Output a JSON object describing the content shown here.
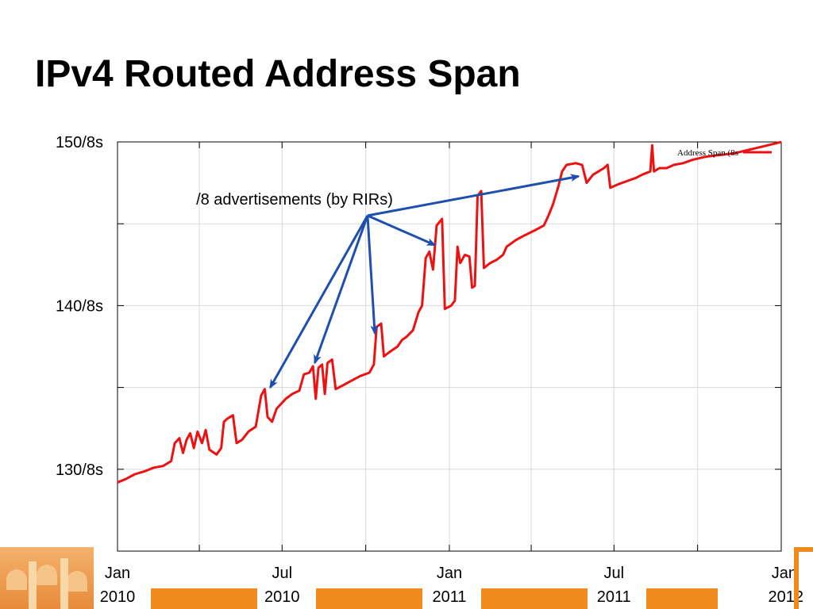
{
  "slide": {
    "title": "IPv4 Routed Address Span"
  },
  "colors": {
    "series_line": "#ee1111",
    "arrow": "#1f4fae",
    "grid": "#d8d8d8",
    "footer_accent": "#f08a1c"
  },
  "chart_data": {
    "type": "line",
    "title": "",
    "xlabel": "",
    "ylabel": "",
    "xlim": [
      "2010-01-01",
      "2012-01-01"
    ],
    "ylim": [
      125,
      150
    ],
    "grid": true,
    "legend": {
      "placement": "top-right",
      "entries": [
        "Address Span (8s"
      ]
    },
    "y_ticks": [
      {
        "value": 150,
        "label": "150/8s"
      },
      {
        "value": 140,
        "label": "140/8s"
      },
      {
        "value": 130,
        "label": "130/8s"
      }
    ],
    "x_ticks": [
      {
        "value": "2010-01-01",
        "month": "Jan",
        "year": "2010"
      },
      {
        "value": "2010-07-01",
        "month": "Jul",
        "year": "2010"
      },
      {
        "value": "2011-01-01",
        "month": "Jan",
        "year": "2011"
      },
      {
        "value": "2011-07-01",
        "month": "Jul",
        "year": "2011"
      },
      {
        "value": "2012-01-01",
        "month": "Jan",
        "year": "2012"
      }
    ],
    "series": [
      {
        "name": "Address Span (8s",
        "points": [
          [
            "2010-01-01",
            129.2
          ],
          [
            "2010-01-10",
            129.4
          ],
          [
            "2010-01-20",
            129.7
          ],
          [
            "2010-02-01",
            129.9
          ],
          [
            "2010-02-10",
            130.1
          ],
          [
            "2010-02-20",
            130.2
          ],
          [
            "2010-03-01",
            130.5
          ],
          [
            "2010-03-05",
            131.6
          ],
          [
            "2010-03-10",
            131.9
          ],
          [
            "2010-03-14",
            131.0
          ],
          [
            "2010-03-18",
            131.8
          ],
          [
            "2010-03-22",
            132.2
          ],
          [
            "2010-03-26",
            131.3
          ],
          [
            "2010-03-30",
            132.3
          ],
          [
            "2010-04-04",
            131.6
          ],
          [
            "2010-04-08",
            132.4
          ],
          [
            "2010-04-12",
            131.2
          ],
          [
            "2010-04-20",
            130.9
          ],
          [
            "2010-04-25",
            131.3
          ],
          [
            "2010-04-28",
            132.9
          ],
          [
            "2010-05-02",
            133.1
          ],
          [
            "2010-05-08",
            133.3
          ],
          [
            "2010-05-12",
            131.6
          ],
          [
            "2010-05-18",
            131.8
          ],
          [
            "2010-05-25",
            132.3
          ],
          [
            "2010-06-02",
            132.6
          ],
          [
            "2010-06-08",
            134.5
          ],
          [
            "2010-06-12",
            134.9
          ],
          [
            "2010-06-15",
            133.2
          ],
          [
            "2010-06-20",
            132.9
          ],
          [
            "2010-06-25",
            133.7
          ],
          [
            "2010-07-05",
            134.3
          ],
          [
            "2010-07-12",
            134.6
          ],
          [
            "2010-07-20",
            134.8
          ],
          [
            "2010-07-25",
            135.8
          ],
          [
            "2010-07-31",
            135.9
          ],
          [
            "2010-08-04",
            136.3
          ],
          [
            "2010-08-07",
            134.3
          ],
          [
            "2010-08-10",
            136.2
          ],
          [
            "2010-08-14",
            136.4
          ],
          [
            "2010-08-17",
            134.6
          ],
          [
            "2010-08-20",
            136.5
          ],
          [
            "2010-08-25",
            136.7
          ],
          [
            "2010-08-29",
            134.9
          ],
          [
            "2010-09-05",
            135.1
          ],
          [
            "2010-09-15",
            135.4
          ],
          [
            "2010-09-25",
            135.7
          ],
          [
            "2010-10-05",
            135.9
          ],
          [
            "2010-10-10",
            136.4
          ],
          [
            "2010-10-13",
            138.7
          ],
          [
            "2010-10-18",
            138.9
          ],
          [
            "2010-10-21",
            136.9
          ],
          [
            "2010-10-28",
            137.2
          ],
          [
            "2010-11-05",
            137.5
          ],
          [
            "2010-11-10",
            137.9
          ],
          [
            "2010-11-15",
            138.1
          ],
          [
            "2010-11-22",
            138.5
          ],
          [
            "2010-11-28",
            139.6
          ],
          [
            "2010-12-02",
            140.0
          ],
          [
            "2010-12-06",
            142.9
          ],
          [
            "2010-12-10",
            143.3
          ],
          [
            "2010-12-14",
            142.2
          ],
          [
            "2010-12-18",
            144.9
          ],
          [
            "2010-12-24",
            145.3
          ],
          [
            "2010-12-27",
            139.8
          ],
          [
            "2011-01-03",
            140.0
          ],
          [
            "2011-01-07",
            140.3
          ],
          [
            "2011-01-10",
            143.6
          ],
          [
            "2011-01-13",
            142.6
          ],
          [
            "2011-01-18",
            143.1
          ],
          [
            "2011-01-23",
            143.0
          ],
          [
            "2011-01-26",
            141.1
          ],
          [
            "2011-01-29",
            141.2
          ],
          [
            "2011-02-01",
            146.7
          ],
          [
            "2011-02-05",
            147.0
          ],
          [
            "2011-02-08",
            142.3
          ],
          [
            "2011-02-15",
            142.6
          ],
          [
            "2011-02-22",
            142.8
          ],
          [
            "2011-03-01",
            143.1
          ],
          [
            "2011-03-05",
            143.6
          ],
          [
            "2011-03-15",
            144.0
          ],
          [
            "2011-03-25",
            144.3
          ],
          [
            "2011-04-05",
            144.6
          ],
          [
            "2011-04-15",
            144.9
          ],
          [
            "2011-04-20",
            145.5
          ],
          [
            "2011-04-25",
            146.2
          ],
          [
            "2011-05-01",
            147.3
          ],
          [
            "2011-05-05",
            148.2
          ],
          [
            "2011-05-10",
            148.6
          ],
          [
            "2011-05-20",
            148.7
          ],
          [
            "2011-05-27",
            148.6
          ],
          [
            "2011-06-01",
            147.5
          ],
          [
            "2011-06-08",
            148.0
          ],
          [
            "2011-06-14",
            148.2
          ],
          [
            "2011-06-20",
            148.4
          ],
          [
            "2011-06-24",
            148.6
          ],
          [
            "2011-06-27",
            147.2
          ],
          [
            "2011-07-05",
            147.4
          ],
          [
            "2011-07-15",
            147.6
          ],
          [
            "2011-07-25",
            147.8
          ],
          [
            "2011-08-01",
            148.0
          ],
          [
            "2011-08-10",
            148.2
          ],
          [
            "2011-08-12",
            149.8
          ],
          [
            "2011-08-14",
            148.2
          ],
          [
            "2011-08-20",
            148.4
          ],
          [
            "2011-08-28",
            148.4
          ],
          [
            "2011-09-05",
            148.6
          ],
          [
            "2011-09-15",
            148.7
          ],
          [
            "2011-09-25",
            148.9
          ],
          [
            "2011-10-10",
            149.1
          ],
          [
            "2011-10-25",
            149.2
          ],
          [
            "2011-11-10",
            149.3
          ],
          [
            "2011-11-25",
            149.5
          ],
          [
            "2011-12-10",
            149.7
          ],
          [
            "2011-12-25",
            149.9
          ],
          [
            "2012-01-01",
            150.0
          ]
        ]
      }
    ],
    "annotations": [
      {
        "text": "/8 advertisements (by RIRs)",
        "anchor": [
          "2010-10-03",
          145.5
        ],
        "arrows_to": [
          [
            "2010-06-18",
            135.0
          ],
          [
            "2010-08-06",
            136.5
          ],
          [
            "2010-10-11",
            138.3
          ],
          [
            "2010-12-16",
            143.7
          ],
          [
            "2011-05-23",
            147.9
          ]
        ]
      }
    ]
  }
}
